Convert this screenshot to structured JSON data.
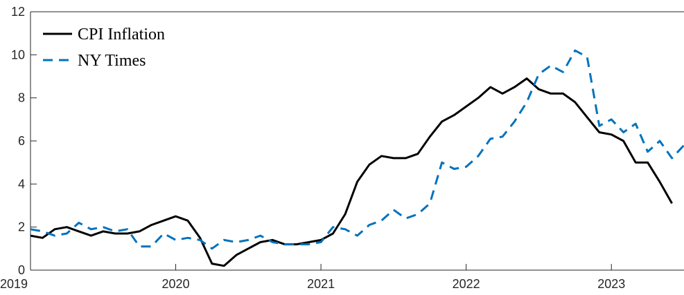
{
  "chart_data": {
    "type": "line",
    "title": "",
    "xlabel": "",
    "ylabel": "",
    "xlim": [
      2019.0,
      2023.5
    ],
    "ylim": [
      0,
      12
    ],
    "grid": false,
    "legend_position": "top-left",
    "x_ticks": [
      2019,
      2020,
      2021,
      2022,
      2023
    ],
    "x_tick_labels": [
      "2019",
      "2020",
      "2021",
      "2022",
      "2023"
    ],
    "y_ticks": [
      0,
      2,
      4,
      6,
      8,
      10,
      12
    ],
    "y_tick_labels": [
      "0",
      "2",
      "4",
      "6",
      "8",
      "10",
      "12"
    ],
    "series": [
      {
        "name": "CPI Inflation",
        "color": "#000000",
        "style": "solid",
        "x": [
          2019.0,
          2019.083,
          2019.167,
          2019.25,
          2019.333,
          2019.417,
          2019.5,
          2019.583,
          2019.667,
          2019.75,
          2019.833,
          2019.917,
          2020.0,
          2020.083,
          2020.167,
          2020.25,
          2020.333,
          2020.417,
          2020.5,
          2020.583,
          2020.667,
          2020.75,
          2020.833,
          2020.917,
          2021.0,
          2021.083,
          2021.167,
          2021.25,
          2021.333,
          2021.417,
          2021.5,
          2021.583,
          2021.667,
          2021.75,
          2021.833,
          2021.917,
          2022.0,
          2022.083,
          2022.167,
          2022.25,
          2022.333,
          2022.417,
          2022.5,
          2022.583,
          2022.667,
          2022.75,
          2022.833,
          2022.917,
          2023.0,
          2023.083,
          2023.167,
          2023.25,
          2023.333,
          2023.417
        ],
        "values": [
          1.6,
          1.5,
          1.9,
          2.0,
          1.8,
          1.6,
          1.8,
          1.7,
          1.7,
          1.8,
          2.1,
          2.3,
          2.5,
          2.3,
          1.5,
          0.3,
          0.2,
          0.7,
          1.0,
          1.3,
          1.4,
          1.2,
          1.2,
          1.3,
          1.4,
          1.7,
          2.6,
          4.1,
          4.9,
          5.3,
          5.2,
          5.2,
          5.4,
          6.2,
          6.9,
          7.2,
          7.6,
          8.0,
          8.5,
          8.2,
          8.5,
          8.9,
          8.4,
          8.2,
          8.2,
          7.8,
          7.1,
          6.4,
          6.3,
          6.0,
          5.0,
          5.0,
          4.1,
          3.1
        ]
      },
      {
        "name": "NY Times",
        "color": "#0072BD",
        "style": "dashed",
        "x": [
          2019.0,
          2019.083,
          2019.167,
          2019.25,
          2019.333,
          2019.417,
          2019.5,
          2019.583,
          2019.667,
          2019.75,
          2019.833,
          2019.917,
          2020.0,
          2020.083,
          2020.167,
          2020.25,
          2020.333,
          2020.417,
          2020.5,
          2020.583,
          2020.667,
          2020.75,
          2020.833,
          2020.917,
          2021.0,
          2021.083,
          2021.167,
          2021.25,
          2021.333,
          2021.417,
          2021.5,
          2021.583,
          2021.667,
          2021.75,
          2021.833,
          2021.917,
          2022.0,
          2022.083,
          2022.167,
          2022.25,
          2022.333,
          2022.417,
          2022.5,
          2022.583,
          2022.667,
          2022.75,
          2022.833,
          2022.917,
          2023.0,
          2023.083,
          2023.167,
          2023.25,
          2023.333,
          2023.417,
          2023.5
        ],
        "values": [
          1.9,
          1.8,
          1.6,
          1.7,
          2.2,
          1.9,
          2.0,
          1.8,
          1.9,
          1.1,
          1.1,
          1.7,
          1.4,
          1.5,
          1.4,
          1.0,
          1.4,
          1.3,
          1.4,
          1.6,
          1.3,
          1.2,
          1.2,
          1.2,
          1.3,
          2.0,
          1.9,
          1.6,
          2.1,
          2.3,
          2.8,
          2.4,
          2.6,
          3.1,
          5.0,
          4.7,
          4.8,
          5.3,
          6.1,
          6.2,
          6.9,
          7.8,
          9.1,
          9.5,
          9.2,
          10.2,
          9.9,
          6.7,
          7.0,
          6.4,
          6.8,
          5.5,
          6.0,
          5.2,
          5.8
        ]
      }
    ]
  }
}
